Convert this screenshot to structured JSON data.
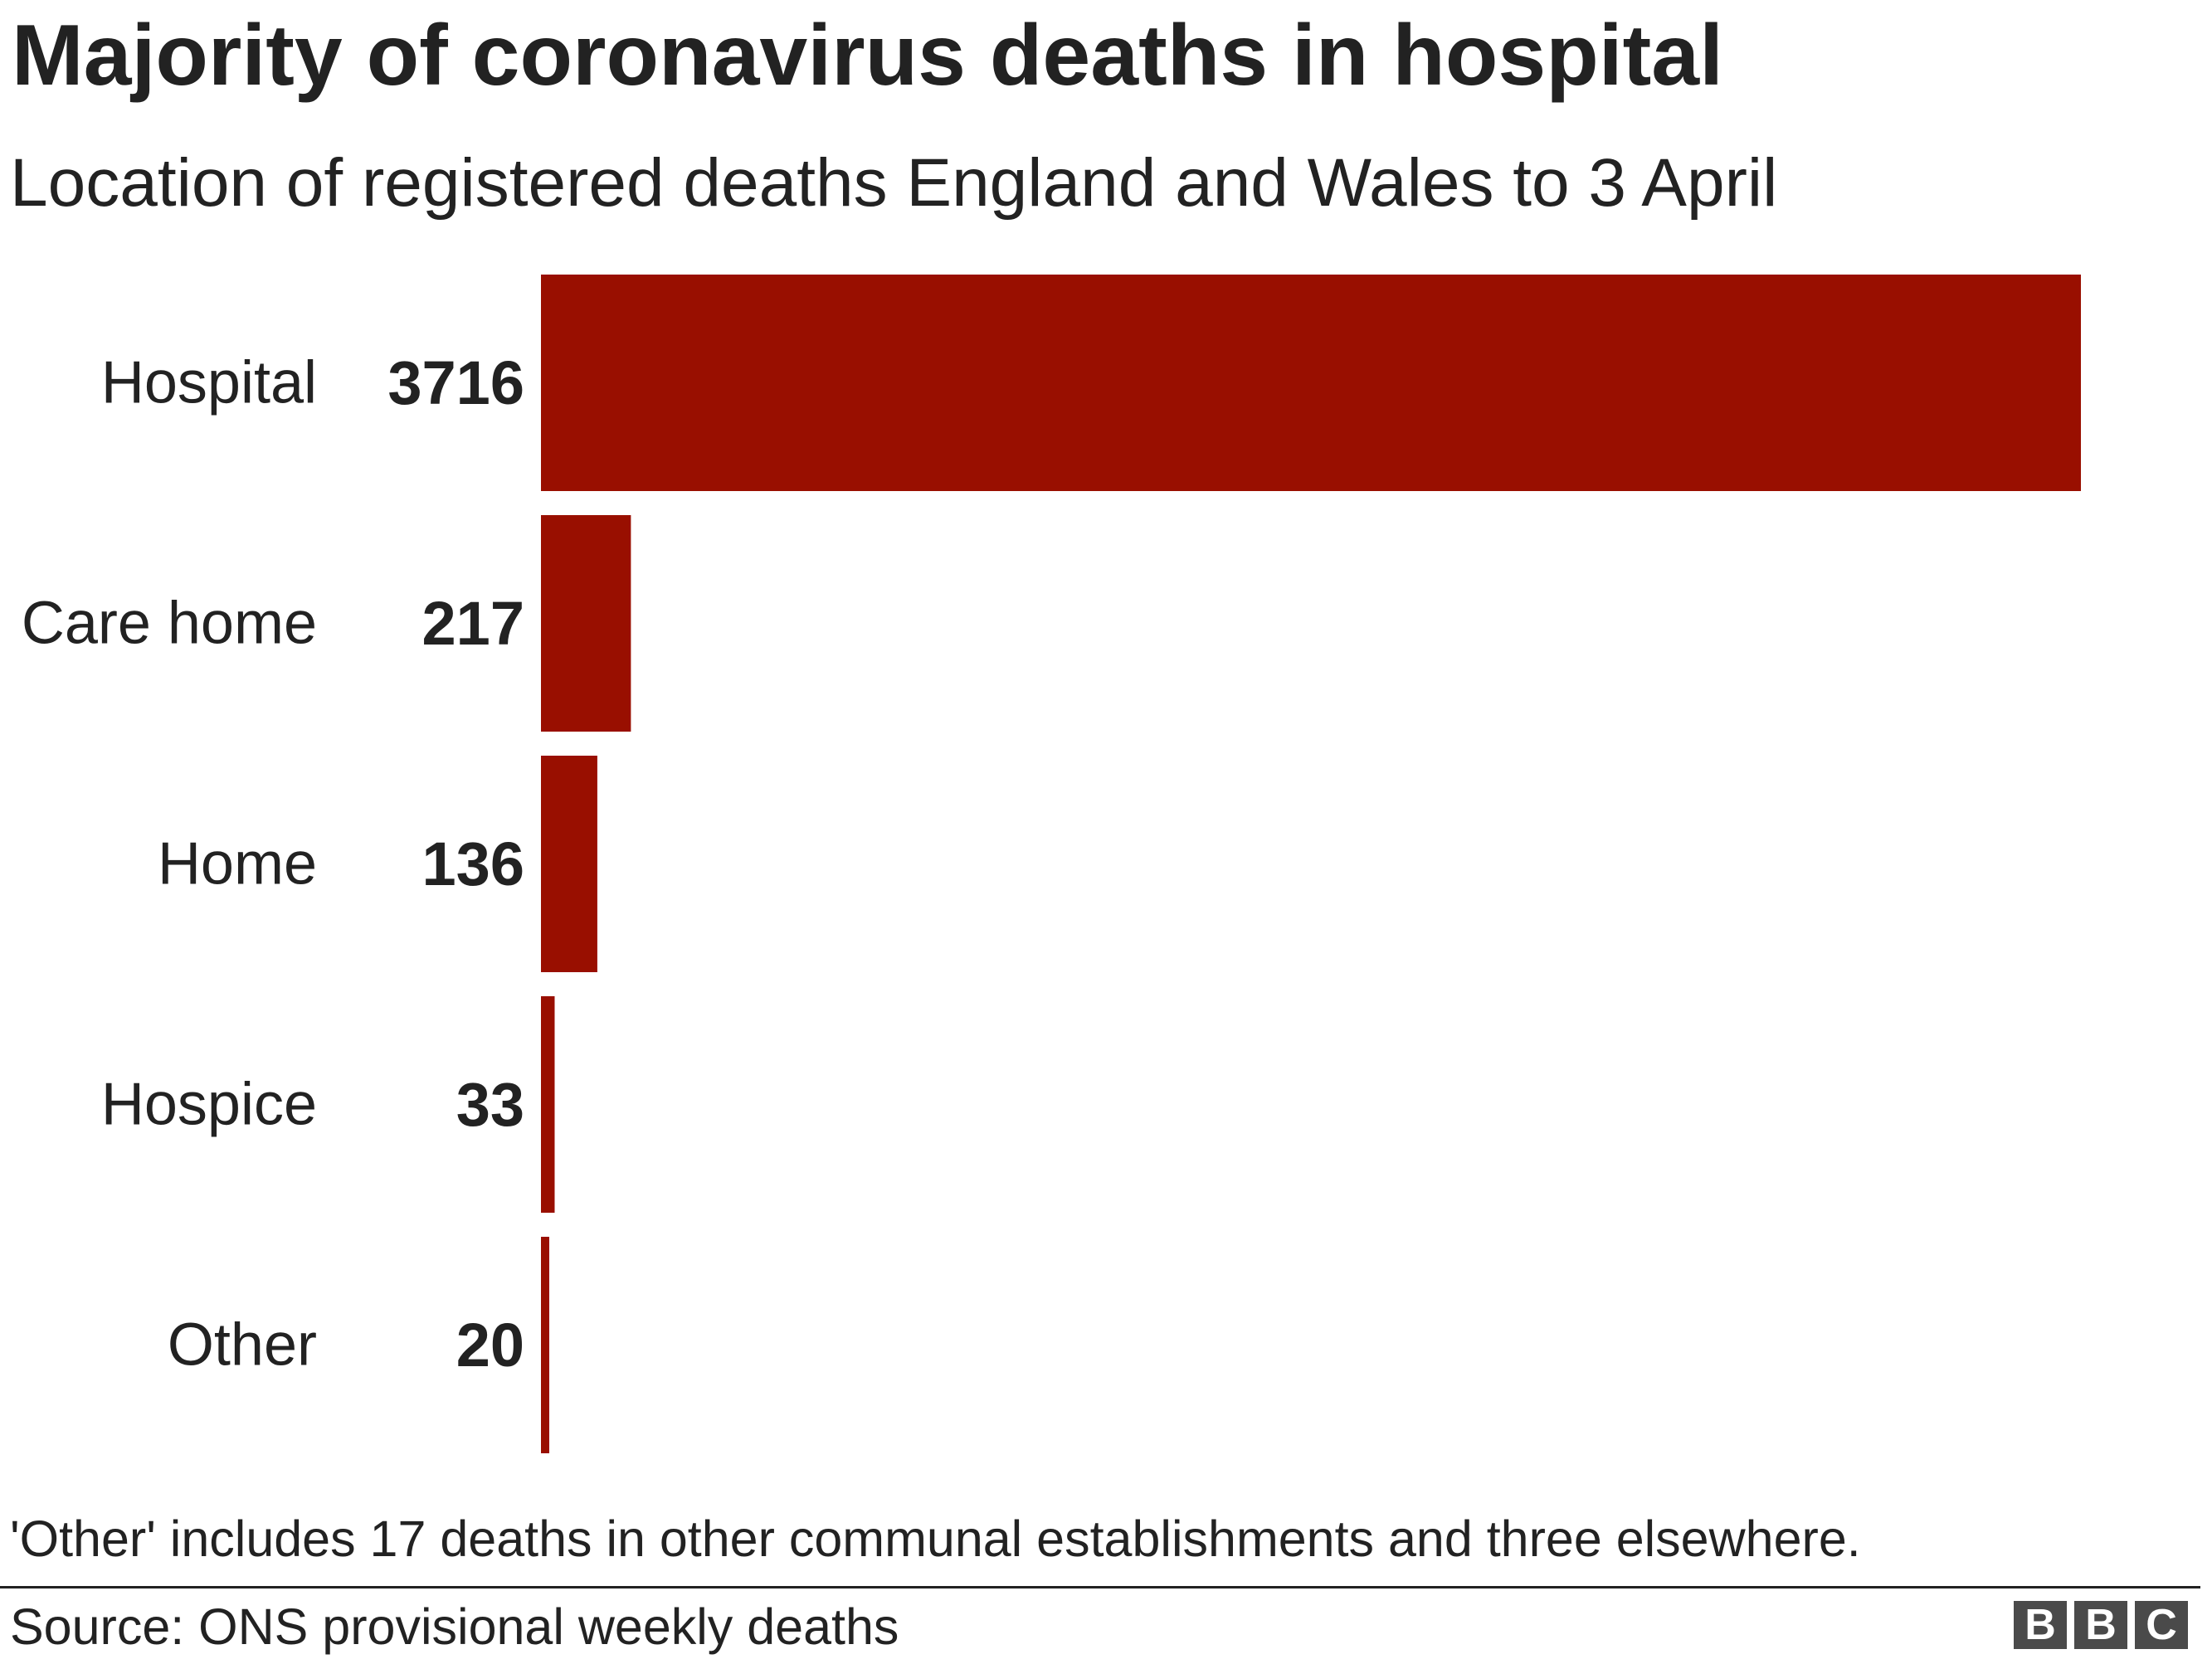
{
  "chart_data": {
    "type": "bar",
    "orientation": "horizontal",
    "title": "Majority of coronavirus deaths in hospital",
    "subtitle": "Location of registered deaths England and Wales to 3 April",
    "categories": [
      "Hospital",
      "Care home",
      "Home",
      "Hospice",
      "Other"
    ],
    "values": [
      3716,
      217,
      136,
      33,
      20
    ],
    "xlim": [
      0,
      3716
    ],
    "grid": false,
    "legend": "none",
    "bar_color": "#990f00"
  },
  "note": "'Other' includes 17 deaths in other communal establishments and three elsewhere.",
  "source": "Source: ONS provisional weekly deaths",
  "logo": {
    "letters": [
      "B",
      "B",
      "C"
    ],
    "text": "BBC"
  },
  "colors": {
    "text": "#222222",
    "logo_box": "#4a4a4a"
  }
}
